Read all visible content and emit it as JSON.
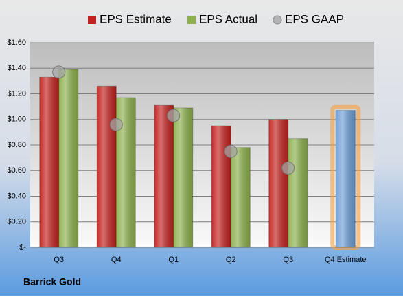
{
  "chart_data": {
    "type": "bar",
    "categories": [
      "Q3",
      "Q4",
      "Q1",
      "Q2",
      "Q3",
      "Q4 Estimate"
    ],
    "series": [
      {
        "name": "EPS Estimate",
        "color": "#c4221f",
        "point_colors": [
          "#c4221f",
          "#c4221f",
          "#c4221f",
          "#c4221f",
          "#c4221f",
          "#6f9fd8"
        ],
        "values": [
          1.33,
          1.26,
          1.11,
          0.95,
          1.0,
          1.07
        ]
      },
      {
        "name": "EPS Actual",
        "color": "#8db04d",
        "values": [
          1.39,
          1.17,
          1.09,
          0.78,
          0.85,
          null
        ]
      },
      {
        "name": "EPS GAAP",
        "color": "#a6a6a6",
        "marker": "circle",
        "values": [
          1.37,
          0.96,
          1.03,
          0.75,
          0.62,
          null
        ]
      }
    ],
    "ylim": [
      0,
      1.6
    ],
    "yticks": [
      {
        "value": 0,
        "label": "$-"
      },
      {
        "value": 0.2,
        "label": "$0.20"
      },
      {
        "value": 0.4,
        "label": "$0.40"
      },
      {
        "value": 0.6,
        "label": "$0.60"
      },
      {
        "value": 0.8,
        "label": "$0.80"
      },
      {
        "value": 1.0,
        "label": "$1.00"
      },
      {
        "value": 1.2,
        "label": "$1.20"
      },
      {
        "value": 1.4,
        "label": "$1.40"
      },
      {
        "value": 1.6,
        "label": "$1.60"
      }
    ],
    "grid": true,
    "highlight_color": "#f5a040",
    "caption": "Barrick Gold"
  }
}
